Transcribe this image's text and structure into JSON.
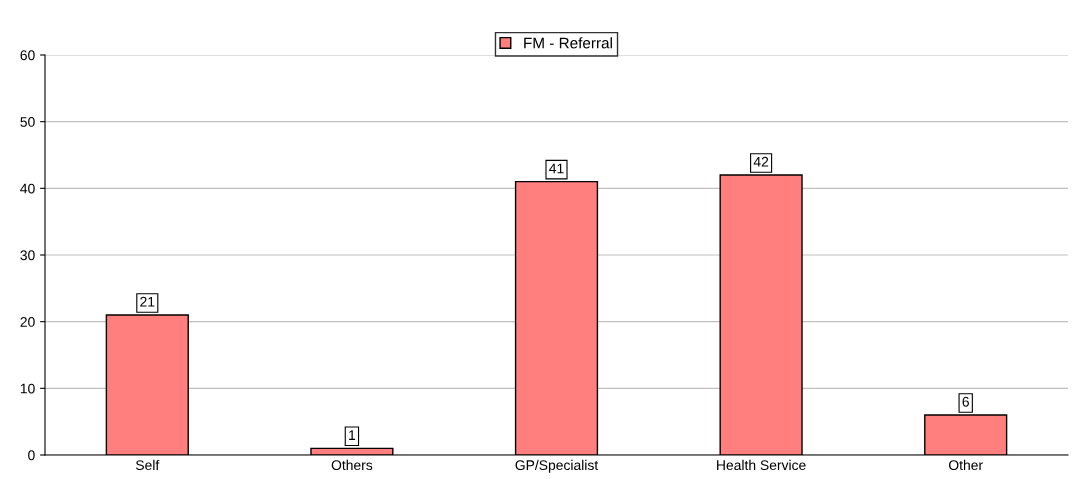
{
  "chart_data": {
    "type": "bar",
    "categories": [
      "Self",
      "Others",
      "GP/Specialist",
      "Health Service",
      "Other"
    ],
    "series": [
      {
        "name": "FM - Referral",
        "color": "#ff7f7f",
        "values": [
          21,
          1,
          41,
          42,
          6
        ]
      }
    ],
    "ylim": [
      0,
      60
    ],
    "yticks": [
      0,
      10,
      20,
      30,
      40,
      50,
      60
    ],
    "grid": "y",
    "legend": "top",
    "data_labels": true
  }
}
